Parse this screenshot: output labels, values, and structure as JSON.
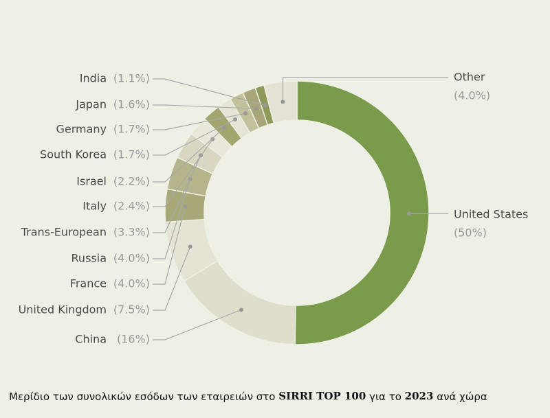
{
  "chart_data": {
    "type": "pie",
    "caption": [
      "Μερίδιο των συνολικών εσόδων των εταιρειών στο ",
      "SIRRI TOP 100",
      " για το ",
      "2023",
      " ανά χώρα"
    ],
    "categories": [
      "United States",
      "China",
      "United Kingdom",
      "France",
      "Russia",
      "Trans-European",
      "Italy",
      "Israel",
      "South Korea",
      "Germany",
      "Japan",
      "India",
      "Other"
    ],
    "values": [
      50,
      16,
      7.5,
      4.0,
      4.0,
      3.3,
      2.4,
      2.2,
      1.7,
      1.7,
      1.6,
      1.1,
      4.0
    ],
    "value_labels": [
      "(50%)",
      "(16%)",
      "(7.5%)",
      "(4.0%)",
      "(4.0%)",
      "(3.3%)",
      "(2.4%)",
      "(2.2%)",
      "(1.7%)",
      "(1.7%)",
      "(1.6%)",
      "(1.1%)",
      "(4.0%)"
    ],
    "colors": [
      "#7a9a4c",
      "#dfdecd",
      "#e4e3d4",
      "#a9a878",
      "#b6b48b",
      "#d9d7c1",
      "#e9e7da",
      "#a3a56e",
      "#e5e4d5",
      "#c2c19b",
      "#a7a678",
      "#8e9a58",
      "#e5e2d5"
    ]
  }
}
